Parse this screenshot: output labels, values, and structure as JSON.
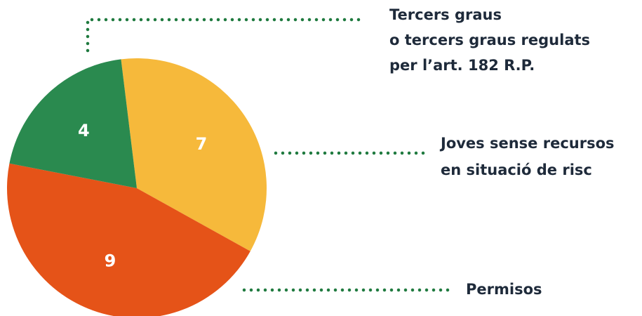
{
  "chart_data": {
    "type": "pie",
    "categories": [
      [
        "Joves sense recursos",
        "en situació de risc"
      ],
      [
        "Permisos"
      ],
      [
        "Tercers graus",
        "o tercers graus regulats",
        "per l’art. 182 R.P."
      ]
    ],
    "values": [
      7,
      9,
      4
    ],
    "colors": [
      "#f6b93b",
      "#e55318",
      "#2a8a4f"
    ]
  }
}
